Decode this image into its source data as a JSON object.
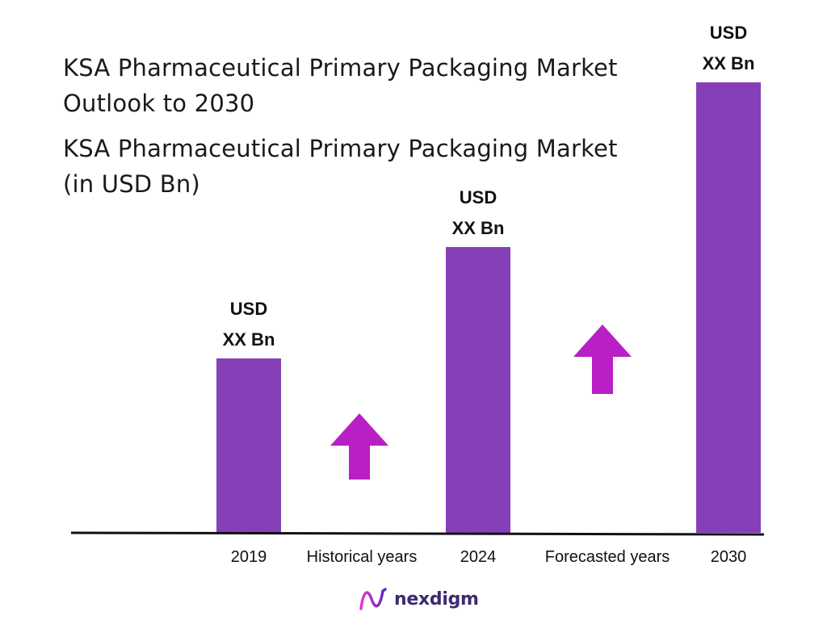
{
  "title": "KSA Pharmaceutical Primary Packaging Market Outlook to 2030",
  "subtitle": "KSA Pharmaceutical Primary Packaging Market (in USD Bn)",
  "colors": {
    "bar": "#8540b8",
    "arrow": "#b81fc4",
    "axis": "#111111",
    "logo": "#3c2a70"
  },
  "chart_data": {
    "type": "bar",
    "title": "KSA Pharmaceutical Primary Packaging Market (in USD Bn)",
    "categories": [
      "2019",
      "2024",
      "2030"
    ],
    "values": [
      36,
      59,
      93
    ],
    "value_labels": [
      [
        "USD",
        "XX Bn"
      ],
      [
        "USD",
        "XX Bn"
      ],
      [
        "USD",
        "XX Bn"
      ]
    ],
    "period_labels": [
      "Historical years",
      "Forecasted years"
    ],
    "period_icons": [
      "up-arrow-icon",
      "up-arrow-icon"
    ],
    "ylim": [
      0,
      100
    ],
    "grid": false,
    "legend": "none"
  },
  "logo": {
    "text": "nexdigm",
    "icon": "nexdigm-wave-icon"
  }
}
